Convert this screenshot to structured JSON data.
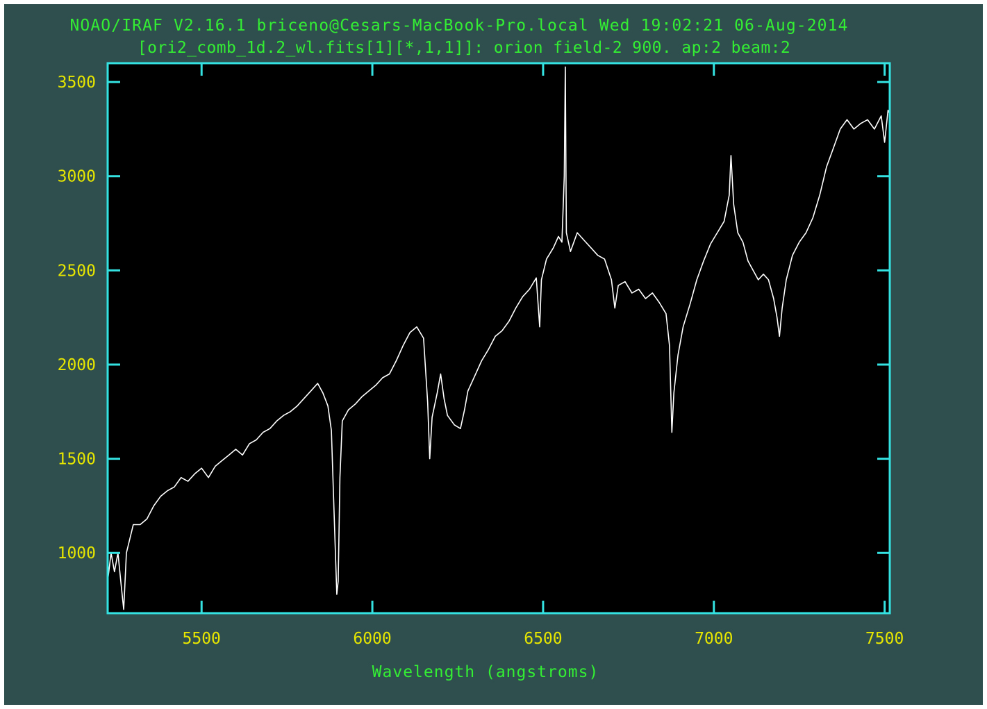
{
  "window": {
    "header_line1": "NOAO/IRAF V2.16.1 briceno@Cesars-MacBook-Pro.local Wed 19:02:21 06-Aug-2014",
    "header_line2": "[ori2_comb_1d.2_wl.fits[1][*,1,1]]: orion field-2 900. ap:2 beam:2"
  },
  "colors": {
    "background": "#2f4f4f",
    "plot_background": "#000000",
    "frame": "#35e2e2",
    "header_text": "#33ee33",
    "tick_labels": "#e6e600",
    "xlabel": "#33ee33",
    "spectrum": "#ffffff"
  },
  "chart_data": {
    "type": "line",
    "title": "",
    "xlabel": "Wavelength (angstroms)",
    "ylabel": "",
    "xlim": [
      5225,
      7515
    ],
    "ylim": [
      680,
      3600
    ],
    "xticks": [
      5500,
      6000,
      6500,
      7000,
      7500
    ],
    "yticks": [
      1000,
      1500,
      2000,
      2500,
      3000,
      3500
    ],
    "grid": false,
    "series": [
      {
        "points": [
          [
            5225,
            850
          ],
          [
            5235,
            1000
          ],
          [
            5245,
            900
          ],
          [
            5255,
            1000
          ],
          [
            5265,
            820
          ],
          [
            5272,
            700
          ],
          [
            5280,
            1000
          ],
          [
            5300,
            1150
          ],
          [
            5320,
            1150
          ],
          [
            5340,
            1180
          ],
          [
            5360,
            1250
          ],
          [
            5380,
            1300
          ],
          [
            5400,
            1330
          ],
          [
            5420,
            1350
          ],
          [
            5440,
            1400
          ],
          [
            5460,
            1380
          ],
          [
            5480,
            1420
          ],
          [
            5500,
            1450
          ],
          [
            5520,
            1400
          ],
          [
            5540,
            1460
          ],
          [
            5560,
            1490
          ],
          [
            5580,
            1520
          ],
          [
            5600,
            1550
          ],
          [
            5620,
            1520
          ],
          [
            5640,
            1580
          ],
          [
            5660,
            1600
          ],
          [
            5680,
            1640
          ],
          [
            5700,
            1660
          ],
          [
            5720,
            1700
          ],
          [
            5740,
            1730
          ],
          [
            5760,
            1750
          ],
          [
            5780,
            1780
          ],
          [
            5800,
            1820
          ],
          [
            5820,
            1860
          ],
          [
            5840,
            1900
          ],
          [
            5855,
            1850
          ],
          [
            5870,
            1780
          ],
          [
            5880,
            1650
          ],
          [
            5890,
            1100
          ],
          [
            5896,
            780
          ],
          [
            5900,
            850
          ],
          [
            5905,
            1400
          ],
          [
            5912,
            1700
          ],
          [
            5930,
            1760
          ],
          [
            5950,
            1790
          ],
          [
            5970,
            1830
          ],
          [
            5990,
            1860
          ],
          [
            6010,
            1890
          ],
          [
            6030,
            1930
          ],
          [
            6050,
            1950
          ],
          [
            6070,
            2020
          ],
          [
            6090,
            2100
          ],
          [
            6110,
            2170
          ],
          [
            6130,
            2200
          ],
          [
            6150,
            2140
          ],
          [
            6162,
            1800
          ],
          [
            6168,
            1500
          ],
          [
            6175,
            1720
          ],
          [
            6190,
            1850
          ],
          [
            6200,
            1950
          ],
          [
            6210,
            1820
          ],
          [
            6220,
            1730
          ],
          [
            6240,
            1680
          ],
          [
            6258,
            1660
          ],
          [
            6270,
            1760
          ],
          [
            6280,
            1860
          ],
          [
            6300,
            1940
          ],
          [
            6320,
            2020
          ],
          [
            6340,
            2080
          ],
          [
            6360,
            2150
          ],
          [
            6380,
            2180
          ],
          [
            6400,
            2230
          ],
          [
            6420,
            2300
          ],
          [
            6440,
            2360
          ],
          [
            6460,
            2400
          ],
          [
            6480,
            2460
          ],
          [
            6490,
            2200
          ],
          [
            6495,
            2450
          ],
          [
            6510,
            2560
          ],
          [
            6530,
            2620
          ],
          [
            6545,
            2680
          ],
          [
            6555,
            2650
          ],
          [
            6562,
            3000
          ],
          [
            6565,
            3580
          ],
          [
            6568,
            2700
          ],
          [
            6580,
            2600
          ],
          [
            6600,
            2700
          ],
          [
            6620,
            2660
          ],
          [
            6640,
            2620
          ],
          [
            6660,
            2580
          ],
          [
            6680,
            2560
          ],
          [
            6700,
            2450
          ],
          [
            6710,
            2300
          ],
          [
            6720,
            2420
          ],
          [
            6740,
            2440
          ],
          [
            6760,
            2380
          ],
          [
            6780,
            2400
          ],
          [
            6800,
            2350
          ],
          [
            6820,
            2380
          ],
          [
            6840,
            2330
          ],
          [
            6860,
            2270
          ],
          [
            6870,
            2100
          ],
          [
            6877,
            1640
          ],
          [
            6883,
            1850
          ],
          [
            6895,
            2050
          ],
          [
            6910,
            2200
          ],
          [
            6930,
            2320
          ],
          [
            6950,
            2450
          ],
          [
            6970,
            2550
          ],
          [
            6990,
            2640
          ],
          [
            7010,
            2700
          ],
          [
            7030,
            2760
          ],
          [
            7045,
            2900
          ],
          [
            7050,
            3110
          ],
          [
            7058,
            2850
          ],
          [
            7070,
            2700
          ],
          [
            7085,
            2650
          ],
          [
            7100,
            2550
          ],
          [
            7115,
            2500
          ],
          [
            7130,
            2450
          ],
          [
            7145,
            2480
          ],
          [
            7160,
            2450
          ],
          [
            7175,
            2350
          ],
          [
            7185,
            2250
          ],
          [
            7192,
            2150
          ],
          [
            7200,
            2300
          ],
          [
            7212,
            2450
          ],
          [
            7230,
            2580
          ],
          [
            7250,
            2650
          ],
          [
            7270,
            2700
          ],
          [
            7290,
            2780
          ],
          [
            7310,
            2900
          ],
          [
            7330,
            3050
          ],
          [
            7350,
            3150
          ],
          [
            7370,
            3250
          ],
          [
            7390,
            3300
          ],
          [
            7410,
            3250
          ],
          [
            7430,
            3280
          ],
          [
            7450,
            3300
          ],
          [
            7470,
            3250
          ],
          [
            7490,
            3320
          ],
          [
            7500,
            3180
          ],
          [
            7510,
            3350
          ],
          [
            7515,
            3330
          ]
        ]
      }
    ]
  }
}
